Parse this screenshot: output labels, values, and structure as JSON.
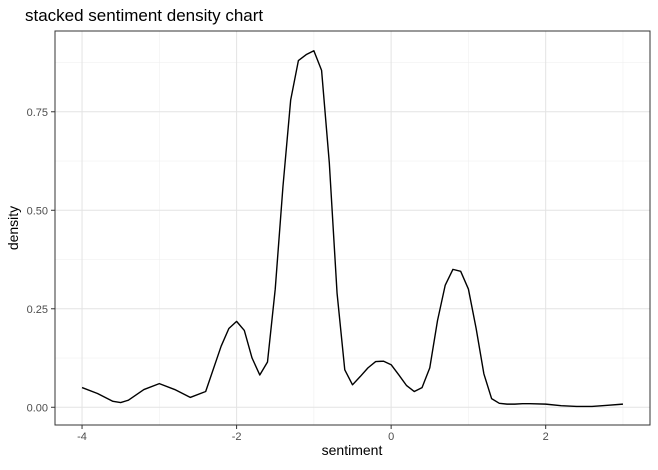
{
  "chart_data": {
    "type": "line",
    "title": "stacked sentiment density chart",
    "xlabel": "sentiment",
    "ylabel": "density",
    "xlim": [
      -4.0,
      3.0
    ],
    "ylim": [
      -0.045,
      0.955
    ],
    "x_ticks": [
      -4,
      -2,
      0,
      2
    ],
    "x_tick_labels": [
      "-4",
      "-2",
      "0",
      "2"
    ],
    "y_ticks": [
      0.0,
      0.25,
      0.5,
      0.75
    ],
    "y_tick_labels": [
      "0.00",
      "0.25",
      "0.50",
      "0.75"
    ],
    "grid": true,
    "legend": "none",
    "series": [
      {
        "color": "#000000",
        "x": [
          -4.0,
          -3.8,
          -3.6,
          -3.5,
          -3.4,
          -3.2,
          -3.0,
          -2.8,
          -2.6,
          -2.4,
          -2.2,
          -2.1,
          -2.0,
          -1.9,
          -1.8,
          -1.7,
          -1.6,
          -1.5,
          -1.4,
          -1.3,
          -1.2,
          -1.1,
          -1.0,
          -0.9,
          -0.8,
          -0.7,
          -0.6,
          -0.5,
          -0.4,
          -0.3,
          -0.2,
          -0.1,
          0.0,
          0.1,
          0.2,
          0.3,
          0.4,
          0.5,
          0.6,
          0.7,
          0.8,
          0.9,
          1.0,
          1.1,
          1.2,
          1.3,
          1.4,
          1.5,
          1.6,
          1.7,
          1.8,
          2.0,
          2.2,
          2.4,
          2.6,
          2.8,
          3.0
        ],
        "y": [
          0.05,
          0.035,
          0.015,
          0.012,
          0.018,
          0.045,
          0.06,
          0.045,
          0.025,
          0.04,
          0.155,
          0.2,
          0.218,
          0.195,
          0.125,
          0.082,
          0.115,
          0.3,
          0.56,
          0.78,
          0.88,
          0.895,
          0.905,
          0.855,
          0.62,
          0.29,
          0.095,
          0.057,
          0.078,
          0.1,
          0.116,
          0.117,
          0.108,
          0.082,
          0.055,
          0.04,
          0.05,
          0.1,
          0.22,
          0.31,
          0.35,
          0.345,
          0.3,
          0.2,
          0.085,
          0.022,
          0.01,
          0.008,
          0.008,
          0.009,
          0.009,
          0.008,
          0.004,
          0.002,
          0.002,
          0.005,
          0.008
        ]
      }
    ]
  }
}
